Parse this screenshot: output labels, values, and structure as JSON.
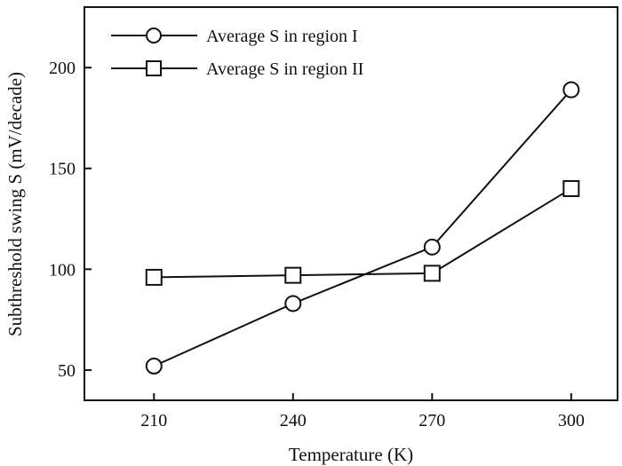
{
  "chart_data": {
    "type": "line",
    "xlabel": "Temperature (K)",
    "ylabel": "Subthreshold swing S (mV/decade)",
    "x": [
      210,
      240,
      270,
      300
    ],
    "x_ticks": [
      "210",
      "240",
      "270",
      "300"
    ],
    "y_ticks": [
      "50",
      "100",
      "150",
      "200"
    ],
    "xlim": [
      195,
      310
    ],
    "ylim": [
      35,
      230
    ],
    "grid": false,
    "legend_position": "top-left",
    "series": [
      {
        "name": "Average S in region I",
        "marker": "circle",
        "values": [
          52,
          83,
          111,
          189
        ]
      },
      {
        "name": "Average S in region II",
        "marker": "square",
        "values": [
          96,
          97,
          98,
          140
        ]
      }
    ],
    "color": "#111111"
  }
}
